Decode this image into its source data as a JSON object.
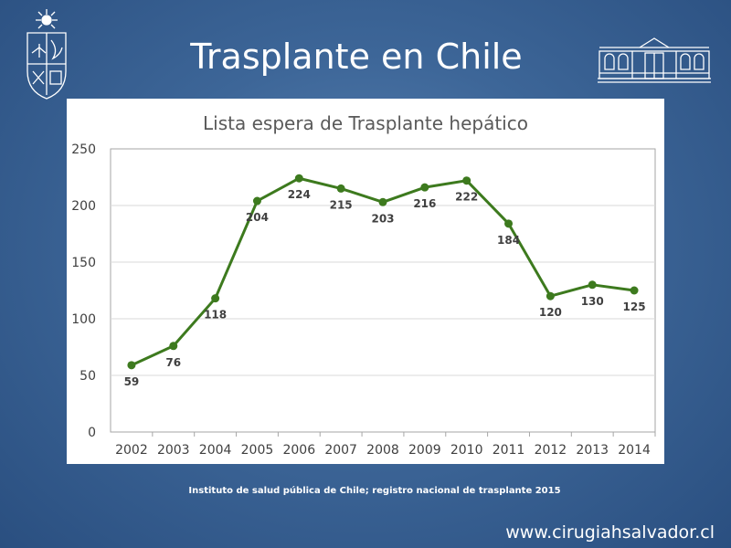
{
  "slide": {
    "title": "Trasplante en Chile",
    "source": "Instituto de salud pública de Chile; registro nacional de trasplante 2015",
    "website": "www.cirugiahsalvador.cl"
  },
  "colors": {
    "background": "#3d6698",
    "line": "#3d7a1e",
    "grid": "#d9d9d9"
  },
  "icons": {
    "left_logo": "university-crest-icon",
    "right_logo": "hospital-building-icon"
  },
  "chart_data": {
    "type": "line",
    "title": "Lista espera de Trasplante hepático",
    "xlabel": "",
    "ylabel": "",
    "categories": [
      "2002",
      "2003",
      "2004",
      "2005",
      "2006",
      "2007",
      "2008",
      "2009",
      "2010",
      "2011",
      "2012",
      "2013",
      "2014"
    ],
    "series": [
      {
        "values": [
          59,
          76,
          118,
          204,
          224,
          215,
          203,
          216,
          222,
          184,
          120,
          130,
          125
        ]
      }
    ],
    "ylim": [
      0,
      250
    ],
    "yticks": [
      0,
      50,
      100,
      150,
      200,
      250
    ],
    "grid": true,
    "legend": "none",
    "data_labels": true
  }
}
